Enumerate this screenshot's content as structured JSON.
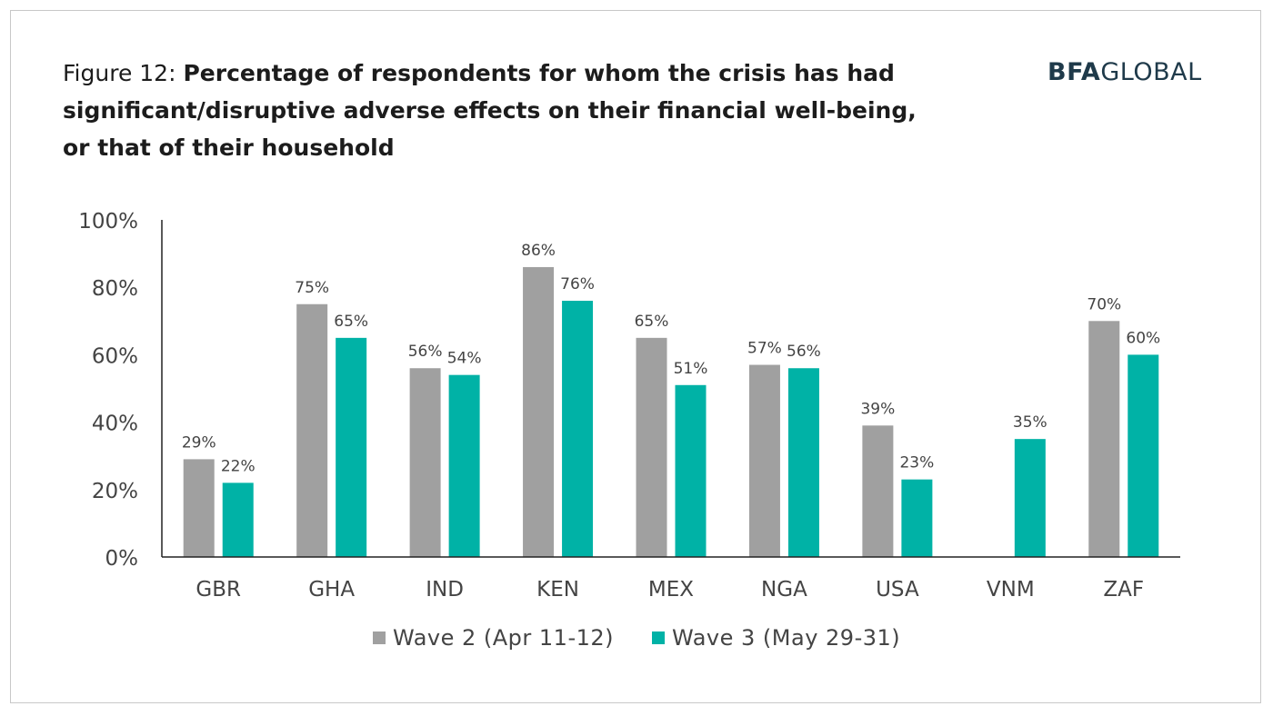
{
  "header": {
    "figure_prefix": "Figure 12: ",
    "title": "Percentage of respondents for whom the crisis has had significant/disruptive adverse effects on their financial well-being, or that of their household",
    "logo_bold": "BFA",
    "logo_regular": "GLOBAL"
  },
  "colors": {
    "wave2": "#a0a0a0",
    "wave3": "#00b2a6",
    "axis": "#222222",
    "logo": "#1f3a4a"
  },
  "chart_data": {
    "type": "bar",
    "categories": [
      "GBR",
      "GHA",
      "IND",
      "KEN",
      "MEX",
      "NGA",
      "USA",
      "VNM",
      "ZAF"
    ],
    "series": [
      {
        "name": "Wave 2 (Apr 11-12)",
        "values": [
          29,
          75,
          56,
          86,
          65,
          57,
          39,
          null,
          70
        ],
        "labels": [
          "29%",
          "75%",
          "56%",
          "86%",
          "65%",
          "57%",
          "39%",
          "",
          "70%"
        ]
      },
      {
        "name": "Wave 3 (May 29-31)",
        "values": [
          22,
          65,
          54,
          76,
          51,
          56,
          23,
          35,
          60
        ],
        "labels": [
          "22%",
          "65%",
          "54%",
          "76%",
          "51%",
          "56%",
          "23%",
          "35%",
          "60%"
        ]
      }
    ],
    "ylim": [
      0,
      100
    ],
    "yticks": [
      "0%",
      "20%",
      "40%",
      "60%",
      "80%",
      "100%"
    ],
    "grid": false,
    "legend_position": "bottom"
  }
}
